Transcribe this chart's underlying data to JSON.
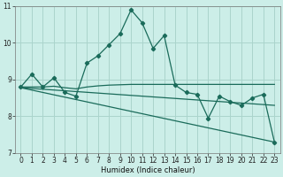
{
  "xlabel": "Humidex (Indice chaleur)",
  "xlim": [
    -0.5,
    23.5
  ],
  "ylim": [
    7,
    11
  ],
  "yticks": [
    7,
    8,
    9,
    10,
    11
  ],
  "xticks": [
    0,
    1,
    2,
    3,
    4,
    5,
    6,
    7,
    8,
    9,
    10,
    11,
    12,
    13,
    14,
    15,
    16,
    17,
    18,
    19,
    20,
    21,
    22,
    23
  ],
  "background_color": "#cceee8",
  "grid_color": "#aad4cc",
  "line_color": "#1a6b5a",
  "series1_x": [
    0,
    1,
    2,
    3,
    4,
    5,
    6,
    7,
    8,
    9,
    10,
    11,
    12,
    13,
    14,
    15,
    16,
    17,
    18,
    19,
    20,
    21,
    22,
    23
  ],
  "series1_y": [
    8.8,
    9.15,
    8.8,
    9.05,
    8.65,
    8.55,
    9.45,
    9.65,
    9.95,
    10.25,
    10.9,
    10.55,
    9.85,
    10.2,
    8.85,
    8.65,
    8.6,
    7.95,
    8.55,
    8.4,
    8.3,
    8.5,
    8.6,
    7.3
  ],
  "series2_x": [
    0,
    1,
    2,
    3,
    4,
    5,
    6,
    7,
    8,
    9,
    10,
    11,
    12,
    13,
    14,
    15,
    16,
    17,
    18,
    19,
    20,
    21,
    22,
    23
  ],
  "series2_y": [
    8.8,
    8.8,
    8.8,
    8.82,
    8.78,
    8.75,
    8.8,
    8.83,
    8.85,
    8.86,
    8.87,
    8.87,
    8.87,
    8.87,
    8.87,
    8.87,
    8.87,
    8.87,
    8.87,
    8.87,
    8.87,
    8.87,
    8.87,
    8.87
  ],
  "series3_x": [
    0,
    23
  ],
  "series3_y": [
    8.78,
    8.3
  ],
  "series4_x": [
    0,
    23
  ],
  "series4_y": [
    8.78,
    7.3
  ]
}
